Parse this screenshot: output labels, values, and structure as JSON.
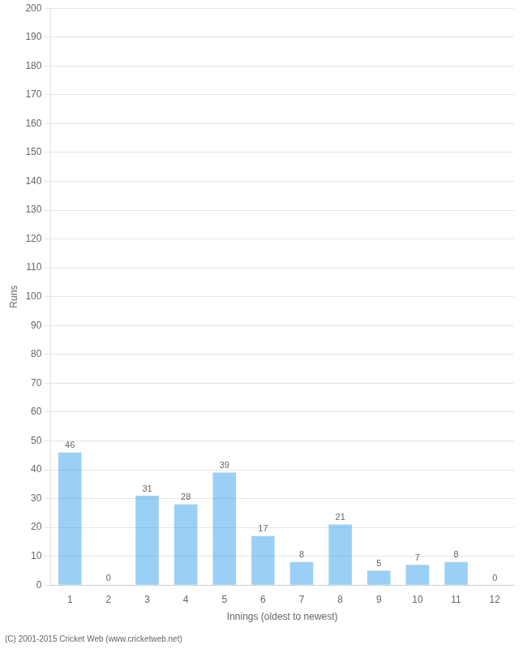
{
  "chart_data": {
    "type": "bar",
    "xlabel": "Innings (oldest to newest)",
    "ylabel": "Runs",
    "categories": [
      1,
      2,
      3,
      4,
      5,
      6,
      7,
      8,
      9,
      10,
      11,
      12
    ],
    "values": [
      46,
      0,
      31,
      28,
      39,
      17,
      8,
      21,
      5,
      7,
      8,
      0
    ],
    "ylim": [
      0,
      200
    ],
    "yticks": [
      0,
      10,
      20,
      30,
      40,
      50,
      60,
      70,
      80,
      90,
      100,
      110,
      120,
      130,
      140,
      150,
      160,
      170,
      180,
      190,
      200
    ],
    "grid": "y",
    "data_labels": true,
    "annotations": [
      "(C) 2001-2015 Cricket Web (www.cricketweb.net)"
    ]
  }
}
